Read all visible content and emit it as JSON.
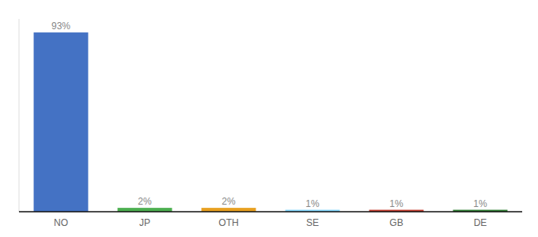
{
  "chart_data": {
    "type": "bar",
    "categories": [
      "NO",
      "JP",
      "OTH",
      "SE",
      "GB",
      "DE"
    ],
    "values": [
      93,
      2,
      2,
      1,
      1,
      1
    ],
    "value_labels": [
      "93%",
      "2%",
      "2%",
      "1%",
      "1%",
      "1%"
    ],
    "colors": [
      "#4472c4",
      "#4caf50",
      "#e8a020",
      "#81d4fa",
      "#c0392b",
      "#2e7d32"
    ],
    "ylim": [
      0,
      100
    ],
    "data_labels": true,
    "tick_labels": "x",
    "grid": false
  }
}
